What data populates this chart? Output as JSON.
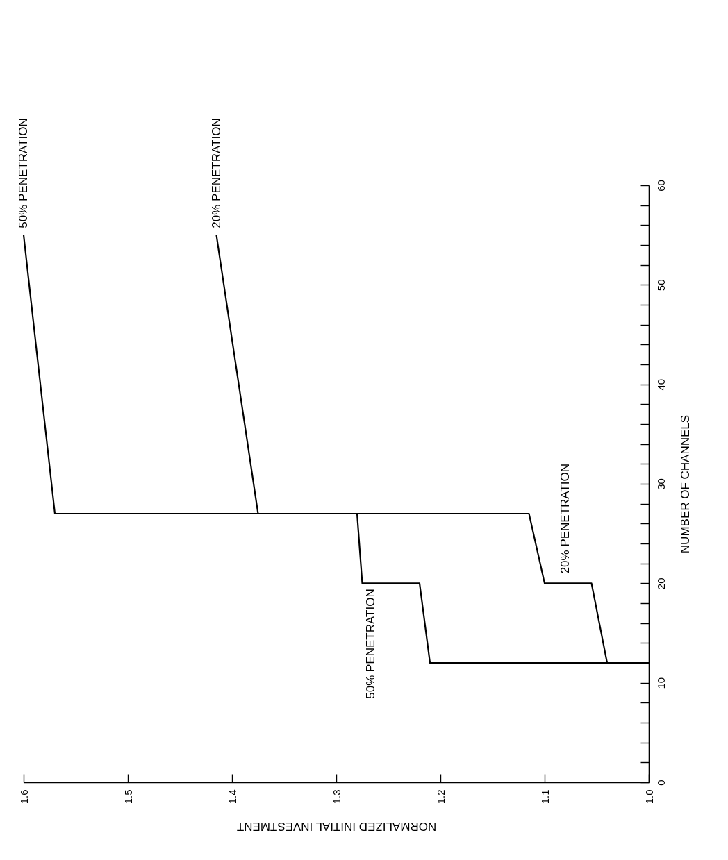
{
  "chart_data": {
    "type": "line",
    "xlabel": "NORMALIZED INITIAL INVESTMENT",
    "ylabel": "NUMBER OF CHANNELS",
    "xlim": [
      1.6,
      1.0
    ],
    "xticks": [
      1.6,
      1.5,
      1.4,
      1.3,
      1.2,
      1.1,
      {
        "value": 1,
        "label": "1.0"
      }
    ],
    "ylim": [
      0,
      60
    ],
    "yticks": [
      0,
      {
        "value": 2,
        "label": null
      },
      {
        "value": 4,
        "label": null
      },
      {
        "value": 6,
        "label": null
      },
      {
        "value": 8,
        "label": null
      },
      10,
      {
        "value": 12,
        "label": null
      },
      {
        "value": 14,
        "label": null
      },
      {
        "value": 16,
        "label": null
      },
      {
        "value": 18,
        "label": null
      },
      20,
      {
        "value": 22,
        "label": null
      },
      {
        "value": 24,
        "label": null
      },
      {
        "value": 26,
        "label": null
      },
      {
        "value": 28,
        "label": null
      },
      30,
      {
        "value": 32,
        "label": null
      },
      {
        "value": 34,
        "label": null
      },
      {
        "value": 36,
        "label": null
      },
      {
        "value": 38,
        "label": null
      },
      40,
      {
        "value": 42,
        "label": null
      },
      {
        "value": 44,
        "label": null
      },
      {
        "value": 46,
        "label": null
      },
      {
        "value": 48,
        "label": null
      },
      50,
      {
        "value": 52,
        "label": null
      },
      {
        "value": 54,
        "label": null
      },
      {
        "value": 56,
        "label": null
      },
      {
        "value": 58,
        "label": null
      },
      60
    ],
    "grid": false,
    "series": [
      {
        "name": "50% PENETRATION",
        "color": "#000000",
        "x": [
          1.0,
          1.21,
          1.22,
          1.275,
          1.28,
          1.57,
          1.6
        ],
        "values": [
          12,
          12,
          20,
          20,
          27,
          27,
          55
        ]
      },
      {
        "name": "20% PENETRATION",
        "color": "#000000",
        "x": [
          1.0,
          1.04,
          1.055,
          1.1,
          1.115,
          1.375,
          1.415
        ],
        "values": [
          12,
          12,
          20,
          20,
          27,
          27,
          55
        ]
      }
    ]
  }
}
